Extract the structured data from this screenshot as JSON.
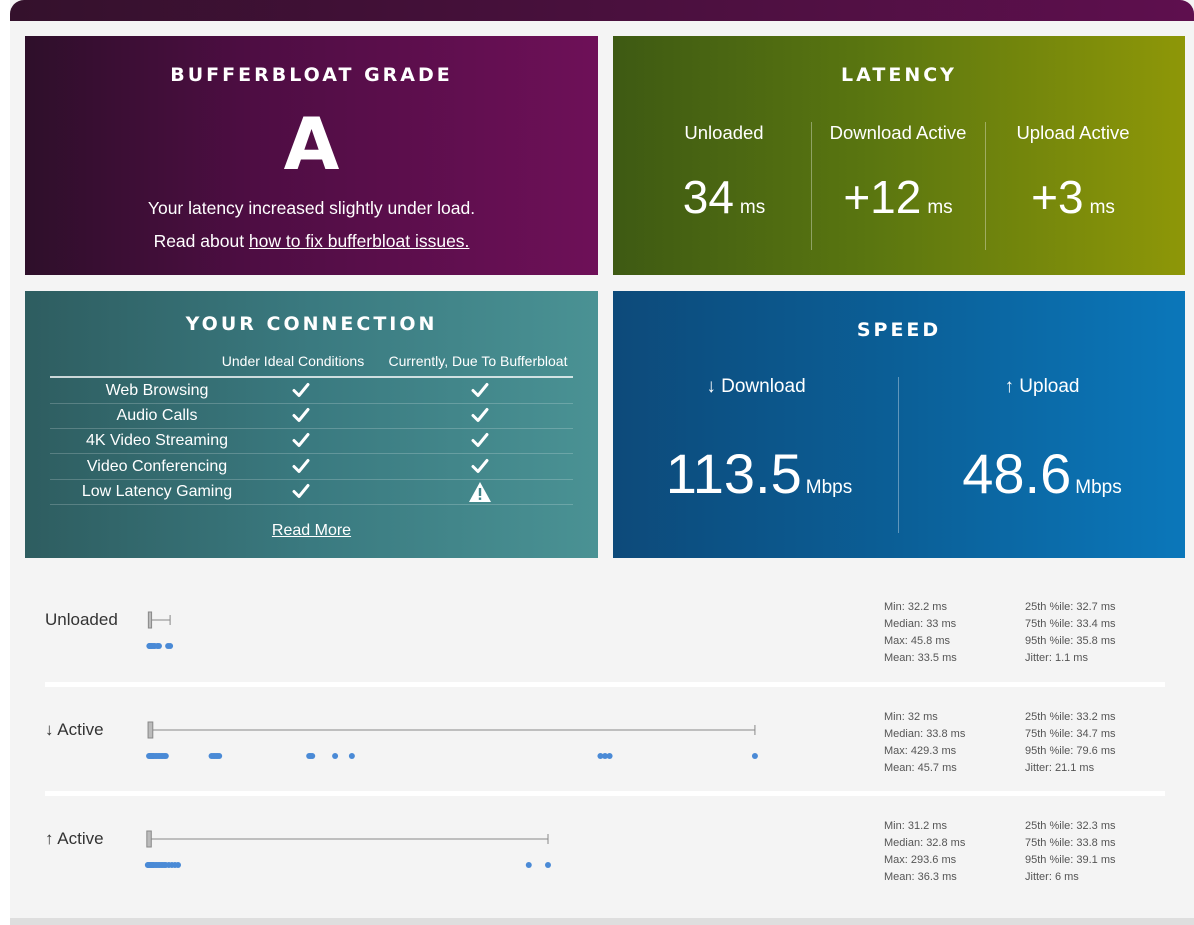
{
  "bufferbloat": {
    "title": "BUFFERBLOAT GRADE",
    "grade": "A",
    "message": "Your latency increased slightly under load.",
    "read_prefix": "Read about ",
    "read_link": "how to fix bufferbloat issues."
  },
  "latency": {
    "title": "LATENCY",
    "unit": "ms",
    "items": [
      {
        "label": "Unloaded",
        "value": "34"
      },
      {
        "label": "Download Active",
        "value": "+12"
      },
      {
        "label": "Upload Active",
        "value": "+3"
      }
    ]
  },
  "connection": {
    "title": "YOUR CONNECTION",
    "col_ideal": "Under Ideal Conditions",
    "col_current": "Currently, Due To Bufferbloat",
    "rows": [
      {
        "name": "Web Browsing",
        "ideal": "check",
        "current": "check"
      },
      {
        "name": "Audio Calls",
        "ideal": "check",
        "current": "check"
      },
      {
        "name": "4K Video Streaming",
        "ideal": "check",
        "current": "check"
      },
      {
        "name": "Video Conferencing",
        "ideal": "check",
        "current": "check"
      },
      {
        "name": "Low Latency Gaming",
        "ideal": "check",
        "current": "warning"
      }
    ],
    "read_more": "Read More"
  },
  "speed": {
    "title": "SPEED",
    "unit": "Mbps",
    "download": {
      "label": "↓ Download",
      "value": "113.5"
    },
    "upload": {
      "label": "↑ Upload",
      "value": "48.6"
    }
  },
  "latency_details": [
    {
      "label": "Unloaded",
      "min": 32.2,
      "max": 45.8,
      "q1": 32.7,
      "median": 33,
      "points": [
        32.2,
        32.4,
        32.6,
        32.8,
        33.0,
        33.2,
        33.5,
        34.0,
        35.0,
        35.8,
        37.5,
        38.5,
        44.5,
        45.8
      ],
      "stats_left": [
        "Min: 32.2 ms",
        "Median: 33 ms",
        "Max: 45.8 ms",
        "Mean: 33.5 ms"
      ],
      "stats_right": [
        "25th %ile: 32.7 ms",
        "75th %ile: 33.4 ms",
        "95th %ile: 35.8 ms",
        "Jitter: 1.1 ms"
      ]
    },
    {
      "label": "↓ Active",
      "min": 32,
      "max": 429.3,
      "q1": 33.2,
      "median": 33.8,
      "points": [
        32,
        32.5,
        33,
        33.5,
        34,
        34.5,
        35,
        36,
        37,
        38,
        39,
        40,
        41,
        42,
        43,
        73,
        74,
        75,
        76,
        77,
        78,
        137,
        138,
        139,
        154,
        165,
        328,
        331,
        334,
        429.3
      ],
      "stats_left": [
        "Min: 32 ms",
        "Median: 33.8 ms",
        "Max: 429.3 ms",
        "Mean: 45.7 ms"
      ],
      "stats_right": [
        "25th %ile: 33.2 ms",
        "75th %ile: 34.7 ms",
        "95th %ile: 79.6 ms",
        "Jitter: 21.1 ms"
      ]
    },
    {
      "label": "↑ Active",
      "min": 31.2,
      "max": 293.6,
      "q1": 32.3,
      "median": 32.8,
      "points": [
        31.2,
        31.5,
        32,
        32.5,
        33,
        33.5,
        34,
        34.5,
        35,
        36,
        37,
        38,
        39,
        40,
        41,
        42,
        43,
        45,
        47,
        49,
        51,
        281,
        293.6
      ],
      "stats_left": [
        "Min: 31.2 ms",
        "Median: 32.8 ms",
        "Max: 293.6 ms",
        "Mean: 36.3 ms"
      ],
      "stats_right": [
        "25th %ile: 32.3 ms",
        "75th %ile: 33.8 ms",
        "95th %ile: 39.1 ms",
        "Jitter: 6 ms"
      ]
    }
  ]
}
